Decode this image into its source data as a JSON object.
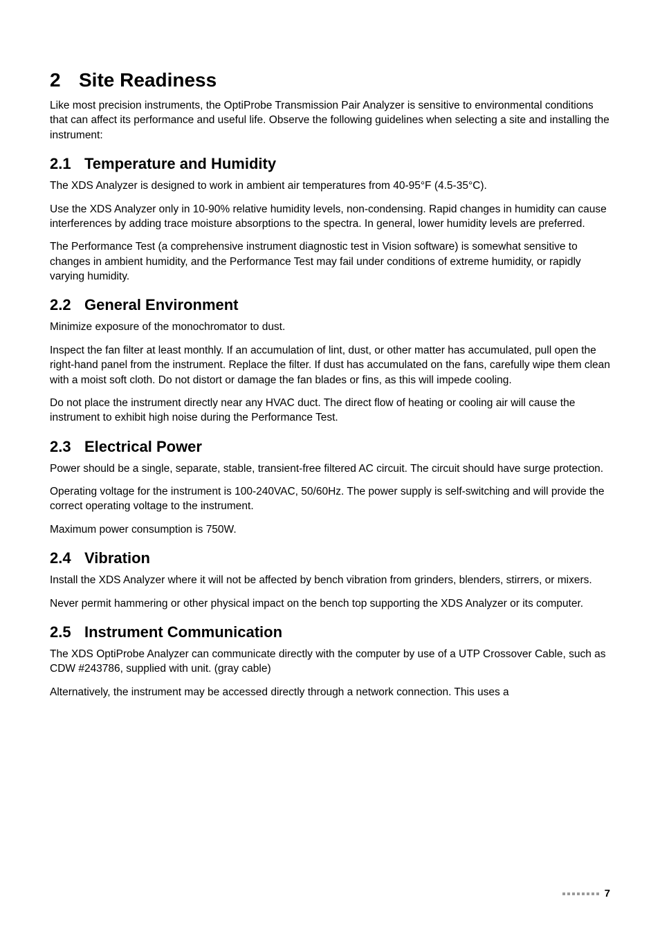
{
  "chapter": {
    "num": "2",
    "title": "Site Readiness",
    "intro": "Like most precision instruments, the OptiProbe Transmission Pair Analyzer is sensitive to environmental conditions that can affect its performance and useful life. Observe the following guidelines when selecting a site and installing the instrument:"
  },
  "sections": {
    "s1": {
      "num": "2.1",
      "title": "Temperature and Humidity",
      "p1": "The XDS Analyzer is designed to work in ambient air temperatures from 40-95°F (4.5-35°C).",
      "p2": "Use the XDS Analyzer only in 10-90% relative humidity levels, non-condensing. Rapid changes in humidity can cause interferences by adding trace moisture absorptions to the spectra. In general, lower humidity levels are preferred.",
      "p3": "The Performance Test (a comprehensive instrument diagnostic test in Vision software) is somewhat sensitive to changes in ambient humidity, and the Performance Test may fail under conditions of extreme humidity, or rapidly varying humidity."
    },
    "s2": {
      "num": "2.2",
      "title": "General Environment",
      "p1": "Minimize exposure of the monochromator to dust.",
      "p2": "Inspect the fan filter at least monthly. If an accumulation of lint, dust, or other matter has accumulated, pull open the right-hand panel from the instrument. Replace the filter. If dust has accumulated on the fans, carefully wipe them clean with a moist soft cloth. Do not distort or damage the fan blades or fins, as this will impede cooling.",
      "p3": "Do not place the instrument directly near any HVAC duct. The direct flow of heating or cooling air will cause the instrument to exhibit high noise during the Performance Test."
    },
    "s3": {
      "num": "2.3",
      "title": "Electrical Power",
      "p1": "Power should be a single, separate, stable, transient-free filtered AC circuit. The circuit should have surge protection.",
      "p2": "Operating voltage for the instrument is 100-240VAC, 50/60Hz. The power supply is self-switching and will provide the correct operating voltage to the instrument.",
      "p3": "Maximum power consumption is 750W."
    },
    "s4": {
      "num": "2.4",
      "title": "Vibration",
      "p1": "Install the XDS Analyzer where it will not be affected by bench vibration from grinders, blenders, stirrers, or mixers.",
      "p2": "Never permit hammering or other physical impact on the bench top supporting the XDS Analyzer or its computer."
    },
    "s5": {
      "num": "2.5",
      "title": "Instrument Communication",
      "p1": "The XDS OptiProbe Analyzer can communicate directly with the computer by use of a UTP Crossover Cable, such as CDW #243786, supplied with unit. (gray cable)",
      "p2": "Alternatively, the instrument may be accessed directly through a network connection. This uses a"
    }
  },
  "footer": {
    "page_number": "7"
  },
  "style": {
    "body_color": "#000000",
    "dot_color": "#9a9a9a",
    "background": "#ffffff"
  }
}
